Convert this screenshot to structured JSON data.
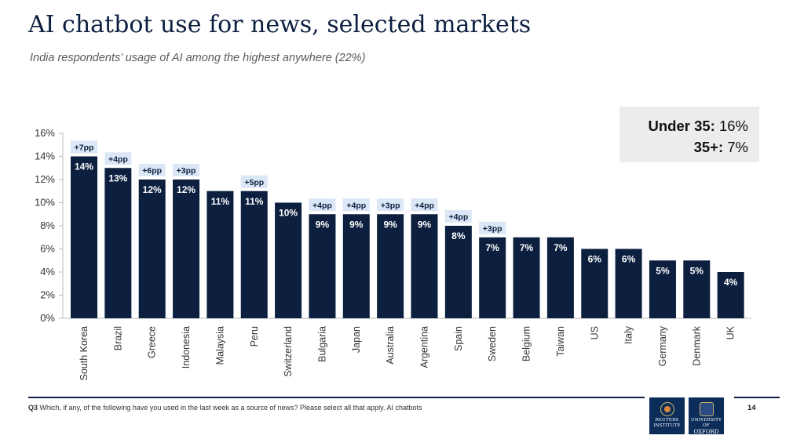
{
  "header": {
    "title": "AI chatbot use for news, selected markets",
    "subtitle": "India respondents’ usage of AI among the highest anywhere (22%)"
  },
  "callout": {
    "line1_label": "Under 35:",
    "line1_value": "16%",
    "line2_label": "35+:",
    "line2_value": "7%"
  },
  "footer": {
    "question_id": "Q3",
    "question_text": "Which, if any, of the following have you used in the last week as a source of news? Please select all that apply. AI chatbots",
    "page_number": "14",
    "logo_left_line1": "REUTERS",
    "logo_left_line2": "INSTITUTE",
    "logo_right_line1": "UNIVERSITY OF",
    "logo_right_line2": "OXFORD"
  },
  "colors": {
    "bar": "#0c1f3f",
    "change_badge": "#dbe7f6",
    "bar_label": "#ffffff"
  },
  "chart_data": {
    "type": "bar",
    "categories": [
      "South Korea",
      "Brazil",
      "Greece",
      "Indonesia",
      "Malaysia",
      "Peru",
      "Switzerland",
      "Bulgaria",
      "Japan",
      "Australia",
      "Argentina",
      "Spain",
      "Sweden",
      "Belgium",
      "Taiwan",
      "US",
      "Italy",
      "Germany",
      "Denmark",
      "UK"
    ],
    "values": [
      14,
      13,
      12,
      12,
      11,
      11,
      10,
      9,
      9,
      9,
      9,
      8,
      7,
      7,
      7,
      6,
      6,
      5,
      5,
      4
    ],
    "value_labels": [
      "14%",
      "13%",
      "12%",
      "12%",
      "11%",
      "11%",
      "10%",
      "9%",
      "9%",
      "9%",
      "9%",
      "8%",
      "7%",
      "7%",
      "7%",
      "6%",
      "6%",
      "5%",
      "5%",
      "4%"
    ],
    "changes": [
      "+7pp",
      "+4pp",
      "+6pp",
      "+3pp",
      "",
      "+5pp",
      "",
      "+4pp",
      "+4pp",
      "+3pp",
      "+4pp",
      "+4pp",
      "+3pp",
      "",
      "",
      "",
      "",
      "",
      "",
      ""
    ],
    "ylim": [
      0,
      16
    ],
    "yticks": [
      0,
      2,
      4,
      6,
      8,
      10,
      12,
      14,
      16
    ],
    "ytick_labels": [
      "0%",
      "2%",
      "4%",
      "6%",
      "8%",
      "10%",
      "12%",
      "14%",
      "16%"
    ],
    "grid": false,
    "title": "",
    "xlabel": "",
    "ylabel": ""
  }
}
